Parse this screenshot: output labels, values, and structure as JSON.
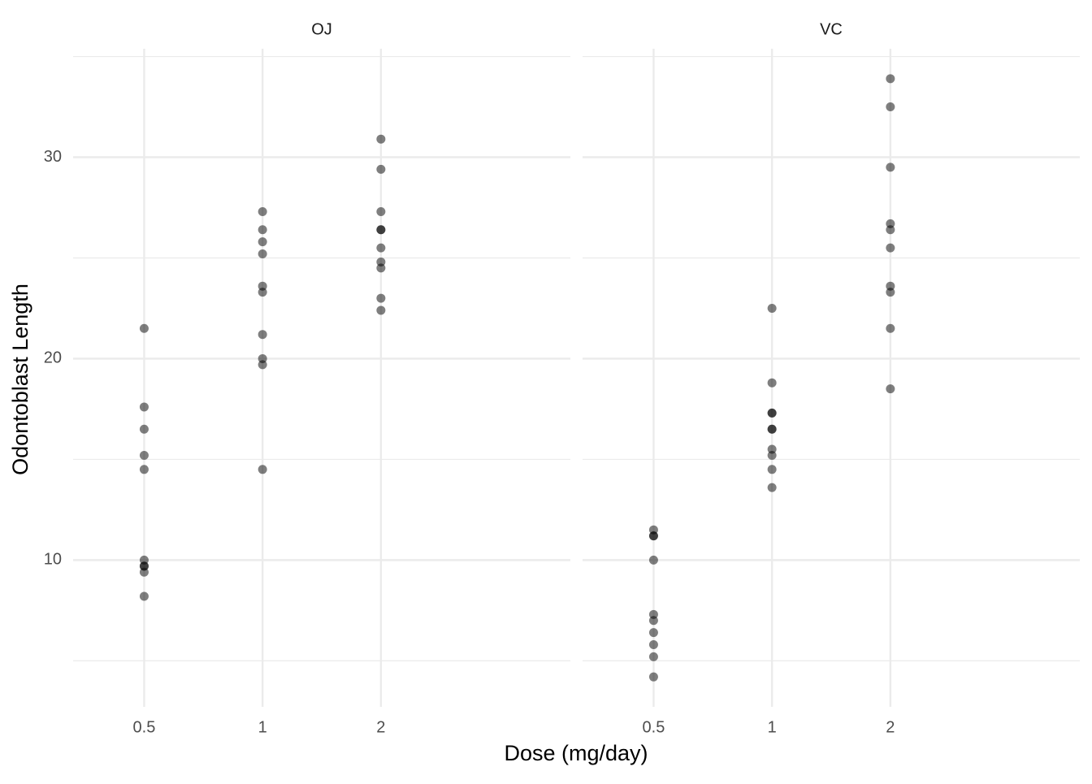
{
  "chart_data": {
    "type": "scatter",
    "x_label": "Dose (mg/day)",
    "y_label": "Odontoblast Length",
    "ylim": [
      2.715,
      35.385
    ],
    "yticks": [
      10,
      20,
      30
    ],
    "minor_yticks": [
      5,
      15,
      25,
      35
    ],
    "grid": true,
    "color": "#000000",
    "alpha": 0.5,
    "panels": [
      {
        "title": "OJ",
        "categories": [
          "0.5",
          "1",
          "2"
        ],
        "values": [
          [
            15.2,
            21.5,
            17.6,
            9.7,
            14.5,
            10,
            8.2,
            9.4,
            16.5,
            9.7
          ],
          [
            19.7,
            23.3,
            23.6,
            26.4,
            20,
            25.2,
            25.8,
            21.2,
            14.5,
            27.3
          ],
          [
            25.5,
            26.4,
            22.4,
            24.5,
            24.8,
            30.9,
            26.4,
            27.3,
            29.4,
            23
          ]
        ]
      },
      {
        "title": "VC",
        "categories": [
          "0.5",
          "1",
          "2"
        ],
        "values": [
          [
            4.2,
            11.5,
            7.3,
            5.8,
            6.4,
            10,
            11.2,
            11.2,
            5.2,
            7
          ],
          [
            16.5,
            16.5,
            15.2,
            17.3,
            22.5,
            17.3,
            13.6,
            14.5,
            18.8,
            15.5
          ],
          [
            23.6,
            18.5,
            33.9,
            25.5,
            26.4,
            32.5,
            26.7,
            21.5,
            23.3,
            29.5
          ]
        ]
      }
    ]
  }
}
